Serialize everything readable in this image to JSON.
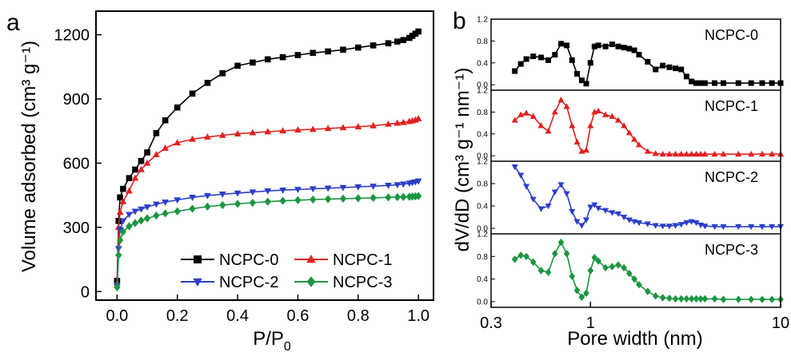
{
  "colors": {
    "NCPC-0": "#000000",
    "NCPC-1": "#e02020",
    "NCPC-2": "#2b3ec8",
    "NCPC-3": "#1a9640"
  },
  "chart_data": [
    {
      "type": "line",
      "panel_label": "a",
      "xlabel_main": "P/P",
      "xlabel_sub": "0",
      "ylabel": "Volume adsorbed (cm³ g⁻¹)",
      "xlim": [
        -0.07,
        1.05
      ],
      "ylim": [
        -40,
        1310
      ],
      "xticks": [
        0.0,
        0.2,
        0.4,
        0.6,
        0.8,
        1.0
      ],
      "xtick_labels": [
        "0.0",
        "0.2",
        "0.4",
        "0.6",
        "0.8",
        "1.0"
      ],
      "yticks": [
        0,
        300,
        600,
        900,
        1200
      ],
      "ytick_labels": [
        "0",
        "300",
        "600",
        "900",
        "1200"
      ],
      "legend_position": "bottom-right",
      "series": [
        {
          "name": "NCPC-0",
          "marker": "square",
          "x": [
            0.0,
            0.005,
            0.01,
            0.02,
            0.04,
            0.06,
            0.08,
            0.1,
            0.13,
            0.16,
            0.2,
            0.25,
            0.3,
            0.35,
            0.4,
            0.45,
            0.5,
            0.55,
            0.6,
            0.65,
            0.7,
            0.75,
            0.8,
            0.85,
            0.9,
            0.93,
            0.95,
            0.97,
            0.98,
            0.99,
            1.0
          ],
          "y": [
            50,
            330,
            440,
            480,
            530,
            570,
            610,
            650,
            740,
            800,
            860,
            925,
            975,
            1020,
            1055,
            1070,
            1085,
            1095,
            1105,
            1115,
            1122,
            1130,
            1140,
            1150,
            1160,
            1168,
            1175,
            1185,
            1195,
            1205,
            1215
          ]
        },
        {
          "name": "NCPC-1",
          "marker": "triangle-up",
          "x": [
            0.0,
            0.005,
            0.01,
            0.02,
            0.04,
            0.06,
            0.08,
            0.1,
            0.13,
            0.16,
            0.2,
            0.25,
            0.3,
            0.35,
            0.4,
            0.45,
            0.5,
            0.55,
            0.6,
            0.65,
            0.7,
            0.75,
            0.8,
            0.85,
            0.9,
            0.93,
            0.95,
            0.97,
            0.98,
            0.99,
            1.0
          ],
          "y": [
            40,
            300,
            370,
            420,
            470,
            530,
            570,
            600,
            640,
            670,
            695,
            712,
            722,
            730,
            737,
            742,
            747,
            751,
            755,
            758,
            762,
            766,
            770,
            775,
            782,
            787,
            790,
            795,
            798,
            802,
            808
          ]
        },
        {
          "name": "NCPC-2",
          "marker": "triangle-down",
          "x": [
            0.0,
            0.005,
            0.01,
            0.02,
            0.04,
            0.06,
            0.08,
            0.1,
            0.13,
            0.16,
            0.2,
            0.25,
            0.3,
            0.35,
            0.4,
            0.45,
            0.5,
            0.55,
            0.6,
            0.65,
            0.7,
            0.75,
            0.8,
            0.85,
            0.9,
            0.93,
            0.95,
            0.97,
            0.98,
            0.99,
            1.0
          ],
          "y": [
            30,
            200,
            290,
            330,
            360,
            375,
            385,
            395,
            408,
            418,
            428,
            440,
            448,
            455,
            460,
            465,
            470,
            474,
            477,
            480,
            483,
            486,
            489,
            492,
            496,
            499,
            502,
            506,
            509,
            512,
            516
          ]
        },
        {
          "name": "NCPC-3",
          "marker": "diamond",
          "x": [
            0.0,
            0.005,
            0.01,
            0.02,
            0.04,
            0.06,
            0.08,
            0.1,
            0.13,
            0.16,
            0.2,
            0.25,
            0.3,
            0.35,
            0.4,
            0.45,
            0.5,
            0.55,
            0.6,
            0.65,
            0.7,
            0.75,
            0.8,
            0.85,
            0.9,
            0.93,
            0.95,
            0.97,
            0.98,
            0.99,
            1.0
          ],
          "y": [
            20,
            170,
            240,
            280,
            305,
            320,
            332,
            342,
            355,
            365,
            375,
            387,
            397,
            404,
            410,
            415,
            420,
            424,
            427,
            430,
            432,
            434,
            436,
            438,
            440,
            441,
            442,
            443,
            444,
            445,
            446
          ]
        }
      ]
    },
    {
      "type": "line",
      "panel_label": "b",
      "xlabel": "Pore width (nm)",
      "ylabel": "dV/dD (cm³ g⁻¹ nm⁻¹)",
      "xscale": "log",
      "xlim": [
        0.3,
        10
      ],
      "xticks": [
        0.3,
        1,
        10
      ],
      "xtick_labels": [
        "0.3",
        "1",
        "10"
      ],
      "subplot_ylim": [
        -0.1,
        1.2
      ],
      "subplot_yticks": [
        0.0,
        0.4,
        0.8,
        1.2
      ],
      "subplot_ytick_labels": [
        "0.0",
        "0.4",
        "0.8",
        "1.2"
      ],
      "series": [
        {
          "name": "NCPC-0",
          "marker": "square",
          "x": [
            0.4,
            0.43,
            0.46,
            0.5,
            0.55,
            0.6,
            0.65,
            0.7,
            0.75,
            0.8,
            0.85,
            0.9,
            0.95,
            1.0,
            1.05,
            1.1,
            1.2,
            1.3,
            1.4,
            1.5,
            1.6,
            1.7,
            1.8,
            2.0,
            2.2,
            2.4,
            2.6,
            2.8,
            3.0,
            3.2,
            3.4,
            3.6,
            3.8,
            4.0,
            4.5,
            5.0,
            6.0,
            7.0,
            8.0,
            9.0,
            10.0
          ],
          "y": [
            0.25,
            0.38,
            0.47,
            0.52,
            0.5,
            0.45,
            0.55,
            0.75,
            0.72,
            0.45,
            0.2,
            0.08,
            0.02,
            0.4,
            0.7,
            0.72,
            0.7,
            0.74,
            0.7,
            0.68,
            0.66,
            0.63,
            0.55,
            0.42,
            0.28,
            0.35,
            0.32,
            0.3,
            0.28,
            0.15,
            0.06,
            0.03,
            0.03,
            0.03,
            0.03,
            0.03,
            0.03,
            0.03,
            0.03,
            0.03,
            0.03
          ]
        },
        {
          "name": "NCPC-1",
          "marker": "triangle-up",
          "x": [
            0.4,
            0.43,
            0.46,
            0.5,
            0.55,
            0.6,
            0.65,
            0.7,
            0.75,
            0.8,
            0.85,
            0.9,
            0.95,
            1.0,
            1.05,
            1.1,
            1.2,
            1.3,
            1.4,
            1.5,
            1.6,
            1.7,
            1.8,
            2.0,
            2.2,
            2.4,
            2.6,
            2.8,
            3.0,
            3.2,
            3.4,
            3.6,
            3.8,
            4.0,
            4.5,
            5.0,
            6.0,
            7.0,
            8.0,
            9.0,
            10.0
          ],
          "y": [
            0.65,
            0.75,
            0.78,
            0.72,
            0.55,
            0.45,
            0.8,
            1.02,
            0.9,
            0.55,
            0.25,
            0.08,
            0.1,
            0.55,
            0.8,
            0.82,
            0.75,
            0.72,
            0.65,
            0.55,
            0.42,
            0.3,
            0.2,
            0.08,
            0.04,
            0.03,
            0.03,
            0.03,
            0.03,
            0.03,
            0.03,
            0.03,
            0.03,
            0.03,
            0.03,
            0.03,
            0.03,
            0.03,
            0.03,
            0.03,
            0.03
          ]
        },
        {
          "name": "NCPC-2",
          "marker": "triangle-down",
          "x": [
            0.4,
            0.43,
            0.46,
            0.5,
            0.55,
            0.6,
            0.65,
            0.7,
            0.75,
            0.8,
            0.85,
            0.9,
            0.95,
            1.0,
            1.05,
            1.1,
            1.2,
            1.3,
            1.4,
            1.5,
            1.6,
            1.7,
            1.8,
            2.0,
            2.2,
            2.4,
            2.6,
            2.8,
            3.0,
            3.2,
            3.4,
            3.6,
            3.8,
            4.0,
            4.5,
            5.0,
            6.0,
            7.0,
            8.0,
            9.0,
            10.0
          ],
          "y": [
            1.1,
            0.95,
            0.75,
            0.52,
            0.35,
            0.4,
            0.65,
            0.78,
            0.62,
            0.3,
            0.12,
            0.05,
            0.15,
            0.38,
            0.42,
            0.36,
            0.32,
            0.28,
            0.26,
            0.2,
            0.15,
            0.12,
            0.1,
            0.08,
            0.05,
            0.04,
            0.04,
            0.05,
            0.07,
            0.1,
            0.12,
            0.1,
            0.06,
            0.04,
            0.03,
            0.03,
            0.03,
            0.03,
            0.03,
            0.03,
            0.03
          ]
        },
        {
          "name": "NCPC-3",
          "marker": "diamond",
          "x": [
            0.4,
            0.43,
            0.46,
            0.5,
            0.55,
            0.6,
            0.65,
            0.7,
            0.75,
            0.8,
            0.85,
            0.9,
            0.95,
            1.0,
            1.05,
            1.1,
            1.2,
            1.3,
            1.4,
            1.5,
            1.6,
            1.7,
            1.8,
            2.0,
            2.2,
            2.4,
            2.6,
            2.8,
            3.0,
            3.2,
            3.4,
            3.6,
            3.8,
            4.0,
            4.5,
            5.0,
            6.0,
            7.0,
            8.0,
            9.0,
            10.0
          ],
          "y": [
            0.75,
            0.82,
            0.8,
            0.7,
            0.55,
            0.52,
            0.85,
            1.05,
            0.85,
            0.45,
            0.2,
            0.08,
            0.15,
            0.55,
            0.78,
            0.72,
            0.6,
            0.62,
            0.65,
            0.6,
            0.5,
            0.4,
            0.3,
            0.18,
            0.1,
            0.07,
            0.06,
            0.05,
            0.05,
            0.05,
            0.05,
            0.05,
            0.05,
            0.05,
            0.05,
            0.04,
            0.04,
            0.04,
            0.04,
            0.04,
            0.04
          ]
        }
      ]
    }
  ]
}
